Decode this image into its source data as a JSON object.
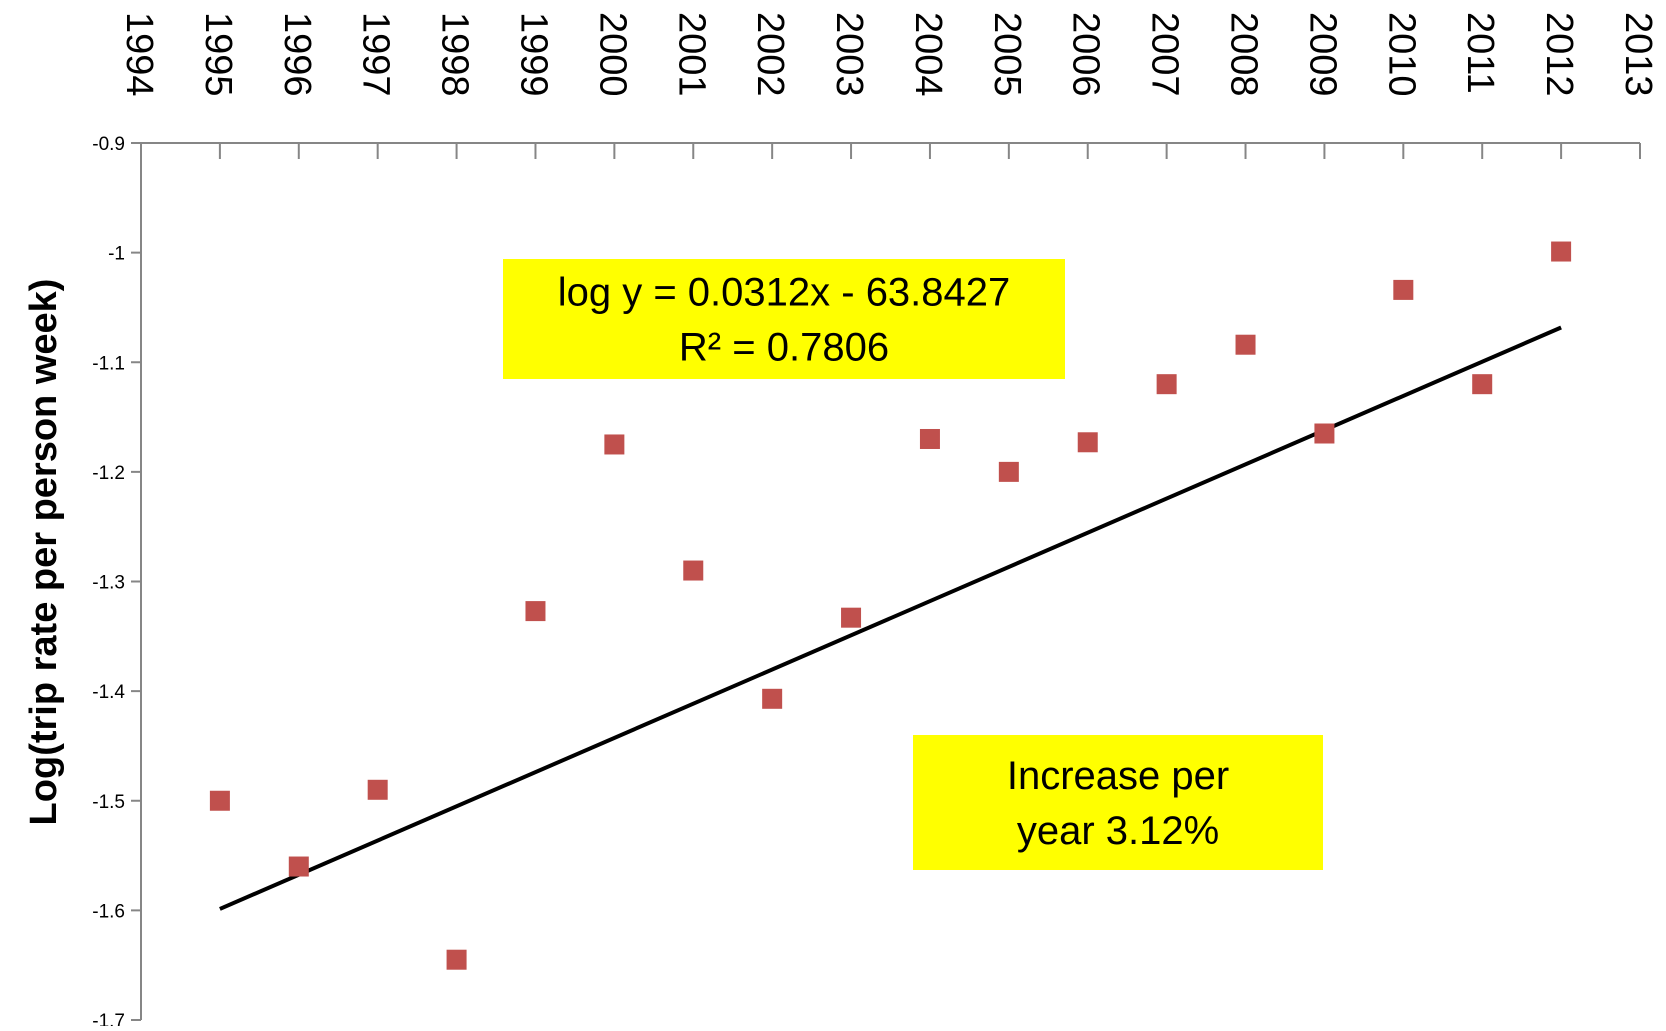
{
  "chart_data": {
    "type": "scatter",
    "title": "",
    "xlabel": "",
    "ylabel": "Log(trip rate per person week)",
    "xlim": [
      1994,
      2013
    ],
    "ylim": [
      -1.7,
      -0.9
    ],
    "x_ticks": [
      "1994",
      "1995",
      "1996",
      "1997",
      "1998",
      "1999",
      "2000",
      "2001",
      "2002",
      "2003",
      "2004",
      "2005",
      "2006",
      "2007",
      "2008",
      "2009",
      "2010",
      "2011",
      "2012",
      "2013"
    ],
    "y_ticks": [
      "-0.9",
      "-1",
      "-1.1",
      "-1.2",
      "-1.3",
      "-1.4",
      "-1.5",
      "-1.6",
      "-1.7"
    ],
    "x_axis_position": "top",
    "grid": false,
    "series": [
      {
        "type": "scatter",
        "marker": "square",
        "color": "#C0504D",
        "points": [
          [
            1995,
            -1.5
          ],
          [
            1996,
            -1.56
          ],
          [
            1997,
            -1.49
          ],
          [
            1998,
            -1.645
          ],
          [
            1999,
            -1.327
          ],
          [
            2000,
            -1.175
          ],
          [
            2001,
            -1.29
          ],
          [
            2002,
            -1.407
          ],
          [
            2003,
            -1.333
          ],
          [
            2004,
            -1.17
          ],
          [
            2005,
            -1.2
          ],
          [
            2006,
            -1.173
          ],
          [
            2007,
            -1.12
          ],
          [
            2008,
            -1.084
          ],
          [
            2009,
            -1.165
          ],
          [
            2010,
            -1.034
          ],
          [
            2011,
            -1.12
          ],
          [
            2012,
            -0.999
          ]
        ]
      },
      {
        "type": "line",
        "color": "#000000",
        "slope": 0.0312,
        "intercept": -63.8427,
        "x_range": [
          1995,
          2012
        ]
      }
    ],
    "annotations": [
      {
        "id": "equation",
        "lines": [
          "log y = 0.0312x - 63.8427",
          "R² = 0.7806"
        ],
        "background": "#FFFF00"
      },
      {
        "id": "increase",
        "lines": [
          "Increase per",
          "year 3.12%"
        ],
        "background": "#FFFF00"
      }
    ]
  }
}
